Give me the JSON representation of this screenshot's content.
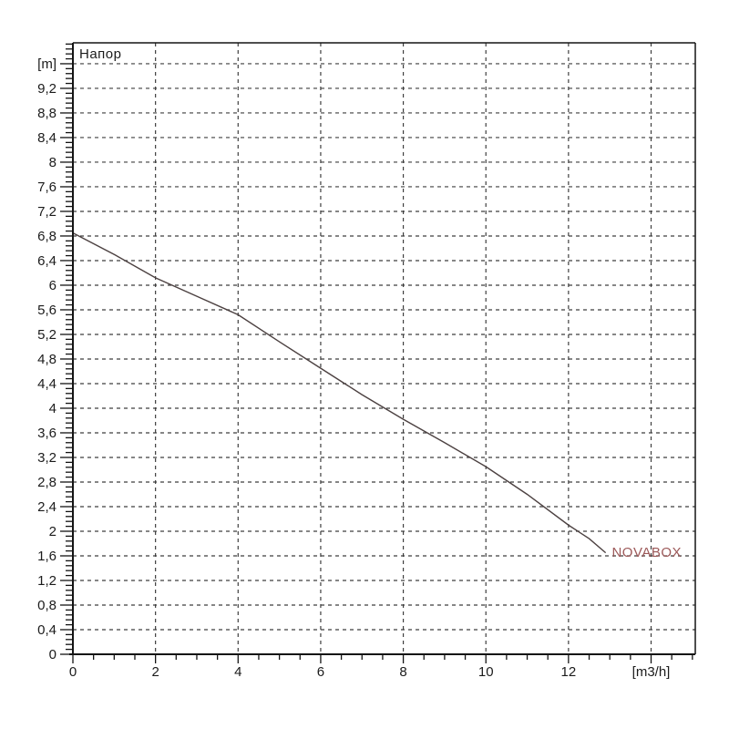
{
  "chart_data": {
    "type": "line",
    "title": "Напор",
    "y_unit_label": "[m]",
    "x_unit_label": "[m3/h]",
    "x_axis": {
      "range": [
        0,
        15.07
      ],
      "minor_step": 0.5,
      "grid_values": [
        2,
        4,
        6,
        8,
        10,
        12,
        14
      ],
      "labels": [
        {
          "v": 0,
          "label": "0"
        },
        {
          "v": 2,
          "label": "2"
        },
        {
          "v": 4,
          "label": "4"
        },
        {
          "v": 6,
          "label": "6"
        },
        {
          "v": 8,
          "label": "8"
        },
        {
          "v": 10,
          "label": "10"
        },
        {
          "v": 12,
          "label": "12"
        },
        {
          "v": 14,
          "label": "[m3/h]"
        }
      ]
    },
    "y_axis": {
      "range": [
        0,
        9.94
      ],
      "minor_step": 0.08,
      "major_step": 0.4,
      "labels": [
        {
          "v": 0,
          "label": "0"
        },
        {
          "v": 0.4,
          "label": "0,4"
        },
        {
          "v": 0.8,
          "label": "0,8"
        },
        {
          "v": 1.2,
          "label": "1,2"
        },
        {
          "v": 1.6,
          "label": "1,6"
        },
        {
          "v": 2,
          "label": "2"
        },
        {
          "v": 2.4,
          "label": "2,4"
        },
        {
          "v": 2.8,
          "label": "2,8"
        },
        {
          "v": 3.2,
          "label": "3,2"
        },
        {
          "v": 3.6,
          "label": "3,6"
        },
        {
          "v": 4,
          "label": "4"
        },
        {
          "v": 4.4,
          "label": "4,4"
        },
        {
          "v": 4.8,
          "label": "4,8"
        },
        {
          "v": 5.2,
          "label": "5,2"
        },
        {
          "v": 5.6,
          "label": "5,6"
        },
        {
          "v": 6,
          "label": "6"
        },
        {
          "v": 6.4,
          "label": "6,4"
        },
        {
          "v": 6.8,
          "label": "6,8"
        },
        {
          "v": 7.2,
          "label": "7,2"
        },
        {
          "v": 7.6,
          "label": "7,6"
        },
        {
          "v": 8,
          "label": "8"
        },
        {
          "v": 8.4,
          "label": "8,4"
        },
        {
          "v": 8.8,
          "label": "8,8"
        },
        {
          "v": 9.2,
          "label": "9,2"
        },
        {
          "v": 9.6,
          "label": "[m]"
        }
      ]
    },
    "series": [
      {
        "name": "NOVABOX",
        "label_anchor": {
          "x": 13.05,
          "y": 1.63
        },
        "points": [
          [
            0,
            6.85
          ],
          [
            1,
            6.5
          ],
          [
            2,
            6.12
          ],
          [
            3,
            5.82
          ],
          [
            4,
            5.52
          ],
          [
            5,
            5.08
          ],
          [
            6,
            4.65
          ],
          [
            7,
            4.22
          ],
          [
            8,
            3.82
          ],
          [
            9,
            3.44
          ],
          [
            10,
            3.05
          ],
          [
            11,
            2.6
          ],
          [
            12,
            2.1
          ],
          [
            12.5,
            1.88
          ],
          [
            12.9,
            1.65
          ]
        ]
      }
    ],
    "colors": {
      "background": "#ffffff",
      "axis": "#141414",
      "grid": "#3f3f3f",
      "text": "#1b1b1b",
      "curve": "#4c4141",
      "series_label": "#9c5858"
    },
    "grid_on": true,
    "legend_position": "inline-at-curve-end"
  }
}
